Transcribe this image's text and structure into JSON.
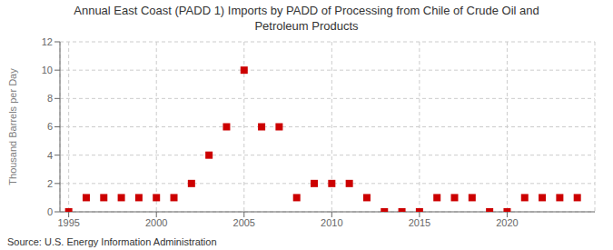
{
  "chart_data": {
    "type": "scatter",
    "title": "Annual East Coast (PADD 1) Imports by PADD of Processing from Chile of Crude Oil and\nPetroleum Products",
    "ylabel": "Thousand Barrels per Day",
    "source": "Source: U.S. Energy Information Administration",
    "x": [
      1995,
      1996,
      1997,
      1998,
      1999,
      2000,
      2001,
      2002,
      2003,
      2004,
      2005,
      2006,
      2007,
      2008,
      2009,
      2010,
      2011,
      2012,
      2013,
      2014,
      2015,
      2016,
      2017,
      2018,
      2019,
      2020,
      2021,
      2022,
      2023,
      2024
    ],
    "values": [
      0,
      1,
      1,
      1,
      1,
      1,
      1,
      2,
      4,
      6,
      10,
      6,
      6,
      1,
      2,
      2,
      2,
      1,
      0,
      0,
      0,
      1,
      1,
      1,
      0,
      0,
      1,
      1,
      1,
      1
    ],
    "color": "#cc0000",
    "marker": "square",
    "xlim": [
      1994.5,
      2025
    ],
    "xticks": [
      1995,
      2000,
      2005,
      2010,
      2015,
      2020
    ],
    "ylim": [
      0,
      12
    ],
    "yticks": [
      0,
      2,
      4,
      6,
      8,
      10,
      12
    ],
    "grid": true
  }
}
